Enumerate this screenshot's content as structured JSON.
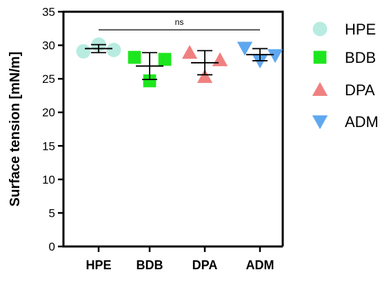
{
  "chart_data": {
    "type": "scatter",
    "ylabel": "Surface tension  [mN/m]",
    "ylim": [
      0,
      35
    ],
    "yticks": [
      0,
      5,
      10,
      15,
      20,
      25,
      30,
      35
    ],
    "categories": [
      "HPE",
      "BDB",
      "DPA",
      "ADM"
    ],
    "series": [
      {
        "name": "HPE",
        "marker": "circle",
        "color": "#b8ece0",
        "points": [
          29.1,
          30.1,
          29.3
        ],
        "mean": 29.5,
        "sd_low": 28.9,
        "sd_high": 30.1
      },
      {
        "name": "BDB",
        "marker": "square",
        "color": "#1ee61e",
        "points": [
          28.2,
          24.7,
          27.9
        ],
        "mean": 26.9,
        "sd_low": 24.9,
        "sd_high": 28.9
      },
      {
        "name": "DPA",
        "marker": "triangle-up",
        "color": "#f08080",
        "points": [
          28.9,
          25.3,
          27.8
        ],
        "mean": 27.4,
        "sd_low": 25.6,
        "sd_high": 29.2
      },
      {
        "name": "ADM",
        "marker": "triangle-down",
        "color": "#5fa8f0",
        "points": [
          29.6,
          27.7,
          28.5
        ],
        "mean": 28.6,
        "sd_low": 27.7,
        "sd_high": 29.5
      }
    ],
    "annotations": [
      {
        "text": "ns",
        "from": "HPE",
        "to": "ADM",
        "y": 32.3
      }
    ],
    "legend": {
      "position": "right",
      "entries": [
        "HPE",
        "BDB",
        "DPA",
        "ADM"
      ]
    },
    "grid": false
  }
}
